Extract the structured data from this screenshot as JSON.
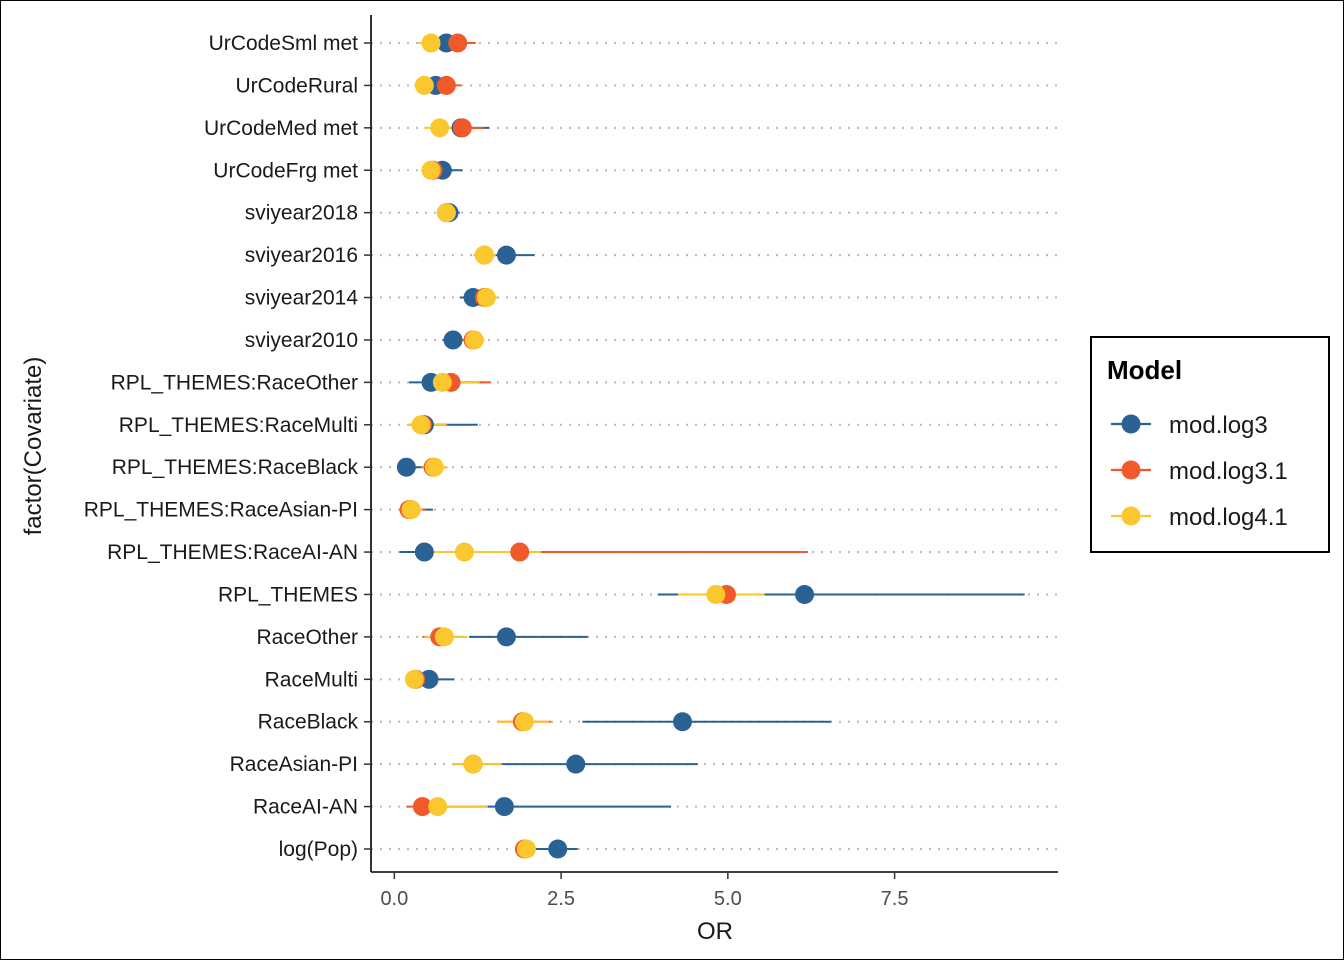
{
  "chart_data": {
    "type": "scatter",
    "subtype": "forest-plot",
    "xlabel": "OR",
    "ylabel": "factor(Covariate)",
    "xlim": [
      -0.35,
      9.95
    ],
    "xticks": [
      0.0,
      2.5,
      5.0,
      7.5
    ],
    "xtick_labels": [
      "0.0",
      "2.5",
      "5.0",
      "7.5"
    ],
    "grid": "horizontal dotted",
    "categories": [
      "log(Pop)",
      "RaceAI-AN",
      "RaceAsian-PI",
      "RaceBlack",
      "RaceMulti",
      "RaceOther",
      "RPL_THEMES",
      "RPL_THEMES:RaceAI-AN",
      "RPL_THEMES:RaceAsian-PI",
      "RPL_THEMES:RaceBlack",
      "RPL_THEMES:RaceMulti",
      "RPL_THEMES:RaceOther",
      "sviyear2010",
      "sviyear2014",
      "sviyear2016",
      "sviyear2018",
      "UrCodeFrg met",
      "UrCodeMed met",
      "UrCodeRural",
      "UrCodeSml met"
    ],
    "legend": {
      "title": "Model",
      "position": "right"
    },
    "series": [
      {
        "name": "mod.log3",
        "color": "#2b6296",
        "values": [
          2.45,
          1.65,
          2.72,
          4.32,
          0.52,
          1.68,
          6.15,
          0.45,
          0.25,
          0.18,
          0.45,
          0.55,
          0.88,
          1.18,
          1.68,
          0.82,
          0.72,
          1.0,
          0.62,
          0.78
        ],
        "lower": [
          2.08,
          0.72,
          1.62,
          2.82,
          0.32,
          1.12,
          3.95,
          0.08,
          0.08,
          0.05,
          0.25,
          0.22,
          0.72,
          0.98,
          1.35,
          0.72,
          0.5,
          0.65,
          0.42,
          0.52
        ],
        "upper": [
          2.75,
          4.15,
          4.55,
          6.55,
          0.9,
          2.9,
          9.45,
          2.8,
          0.58,
          0.62,
          1.25,
          1.35,
          1.12,
          1.45,
          2.1,
          0.98,
          1.02,
          1.42,
          0.9,
          1.02
        ]
      },
      {
        "name": "mod.log3.1",
        "color": "#f05a2a",
        "values": [
          1.95,
          0.42,
          1.18,
          1.92,
          0.32,
          0.68,
          4.98,
          1.88,
          0.22,
          0.58,
          0.42,
          0.85,
          1.18,
          1.35,
          1.35,
          0.78,
          0.58,
          1.02,
          0.78,
          0.95
        ],
        "lower": [
          1.82,
          0.18,
          0.88,
          1.55,
          0.22,
          0.42,
          4.45,
          0.4,
          0.1,
          0.4,
          0.22,
          0.4,
          1.02,
          1.18,
          1.2,
          0.65,
          0.42,
          0.72,
          0.55,
          0.7
        ],
        "upper": [
          2.1,
          0.8,
          1.62,
          2.35,
          0.5,
          1.05,
          5.5,
          6.2,
          0.48,
          0.78,
          0.8,
          1.45,
          1.32,
          1.52,
          1.52,
          0.92,
          0.85,
          1.35,
          1.0,
          1.22
        ]
      },
      {
        "name": "mod.log4.1",
        "color": "#fbc72e",
        "values": [
          1.98,
          0.65,
          1.18,
          1.95,
          0.3,
          0.75,
          4.82,
          1.05,
          0.25,
          0.6,
          0.4,
          0.72,
          1.2,
          1.38,
          1.35,
          0.78,
          0.55,
          0.68,
          0.45,
          0.55
        ],
        "lower": [
          1.85,
          0.38,
          0.88,
          1.55,
          0.18,
          0.45,
          4.25,
          0.5,
          0.12,
          0.42,
          0.2,
          0.42,
          1.05,
          1.2,
          1.18,
          0.65,
          0.4,
          0.45,
          0.3,
          0.35
        ],
        "upper": [
          2.12,
          1.4,
          1.6,
          2.32,
          0.48,
          1.1,
          5.55,
          2.2,
          0.42,
          0.8,
          0.78,
          1.28,
          1.35,
          1.55,
          1.52,
          0.92,
          0.8,
          0.98,
          0.7,
          0.82
        ]
      }
    ]
  }
}
